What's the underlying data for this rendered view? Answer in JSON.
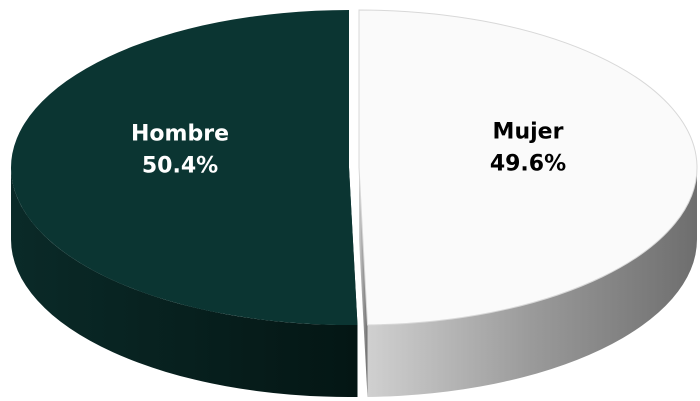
{
  "chart_data": {
    "type": "pie",
    "categories": [
      "Hombre",
      "Mujer"
    ],
    "values": [
      50.4,
      49.6
    ],
    "value_labels": [
      "50.4%",
      "49.6%"
    ],
    "colors": [
      "#0b3532",
      "#fafafa"
    ]
  }
}
